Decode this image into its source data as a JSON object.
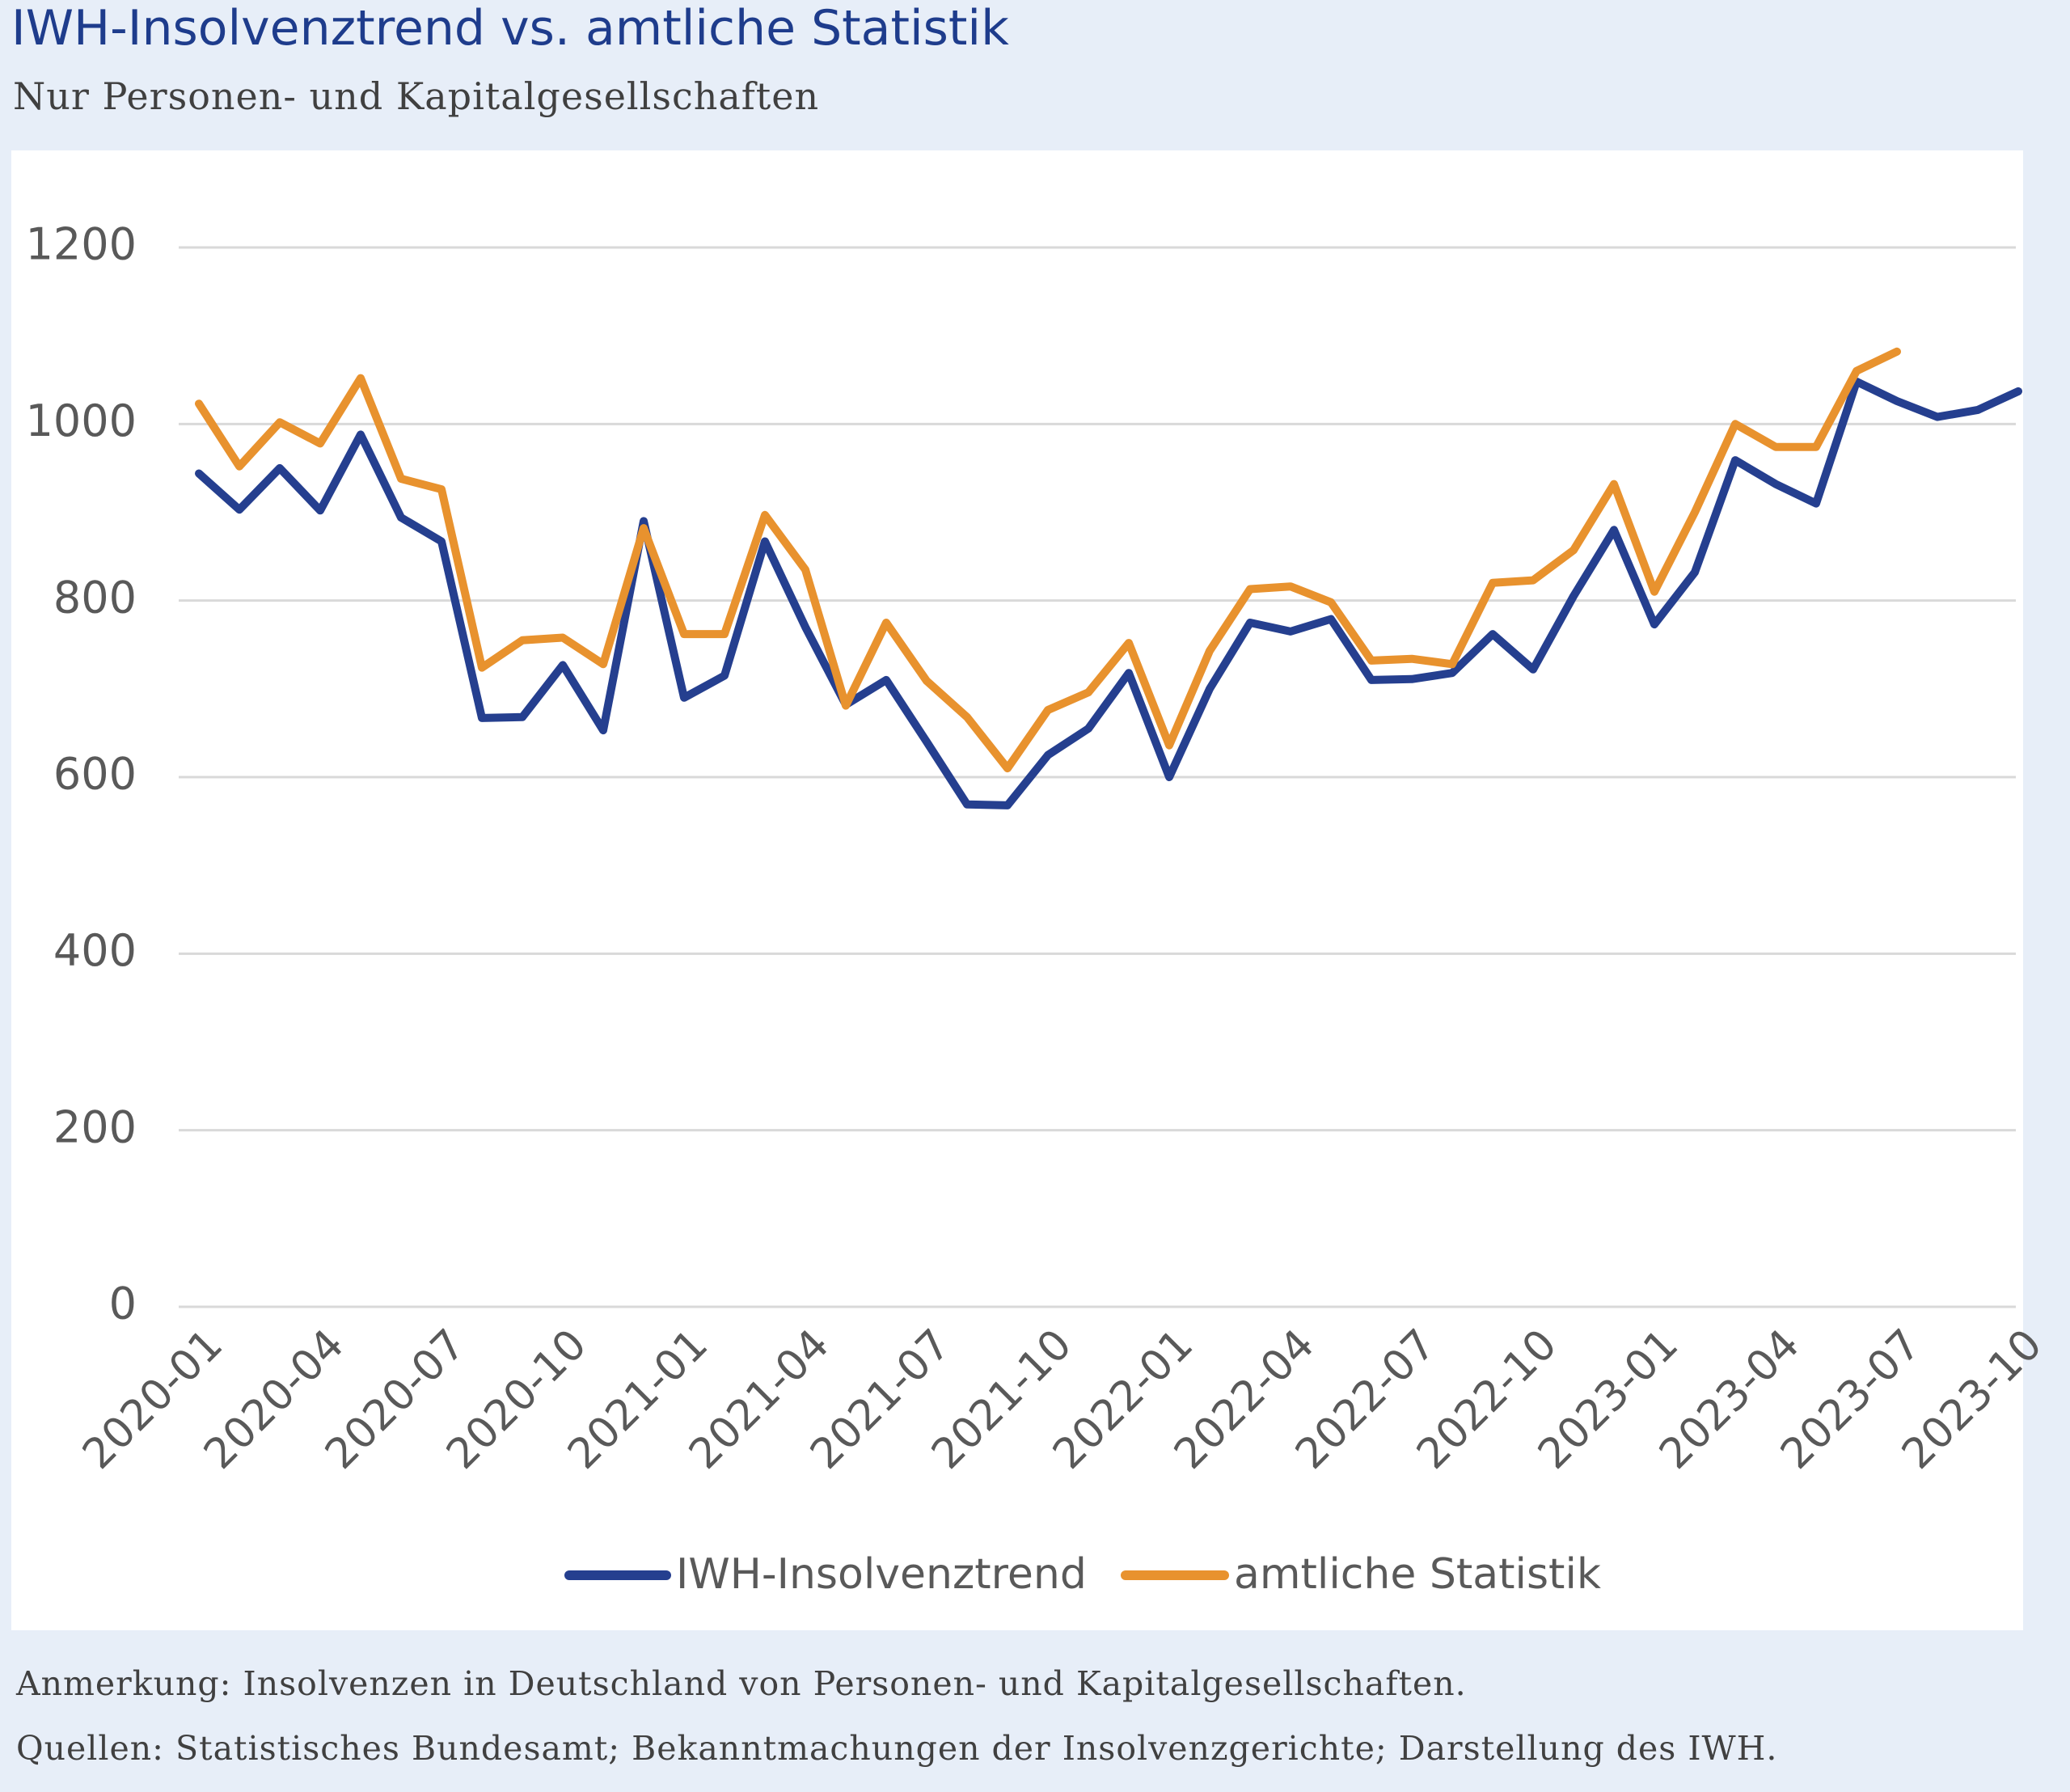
{
  "header": {
    "title": "IWH-Insolvenztrend vs. amtliche Statistik",
    "subtitle": "Nur Personen- und Kapitalgesellschaften"
  },
  "footer": {
    "note": "Anmerkung: Insolvenzen in Deutschland von Personen- und Kapitalgesellschaften.",
    "sources": "Quellen: Statistisches Bundesamt; Bekanntmachungen der Insolvenzgerichte; Darstellung des IWH."
  },
  "chart_data": {
    "type": "line",
    "title": "IWH-Insolvenztrend vs. amtliche Statistik",
    "subtitle": "Nur Personen- und Kapitalgesellschaften",
    "xlabel": "",
    "ylabel": "",
    "ylim": [
      0,
      1200
    ],
    "yticks": [
      0,
      200,
      400,
      600,
      800,
      1000,
      1200
    ],
    "grid": true,
    "legend_position": "bottom",
    "x": [
      "2020-01",
      "2020-02",
      "2020-03",
      "2020-04",
      "2020-05",
      "2020-06",
      "2020-07",
      "2020-08",
      "2020-09",
      "2020-10",
      "2020-11",
      "2020-12",
      "2021-01",
      "2021-02",
      "2021-03",
      "2021-04",
      "2021-05",
      "2021-06",
      "2021-07",
      "2021-08",
      "2021-09",
      "2021-10",
      "2021-11",
      "2021-12",
      "2022-01",
      "2022-02",
      "2022-03",
      "2022-04",
      "2022-05",
      "2022-06",
      "2022-07",
      "2022-08",
      "2022-09",
      "2022-10",
      "2022-11",
      "2022-12",
      "2023-01",
      "2023-02",
      "2023-03",
      "2023-04",
      "2023-05",
      "2023-06",
      "2023-07",
      "2023-08",
      "2023-09",
      "2023-10"
    ],
    "xtick_labels": [
      "2020-01",
      "2020-04",
      "2020-07",
      "2020-10",
      "2021-01",
      "2021-04",
      "2021-07",
      "2021-10",
      "2022-01",
      "2022-04",
      "2022-07",
      "2022-10",
      "2023-01",
      "2023-04",
      "2023-07",
      "2023-10"
    ],
    "series": [
      {
        "name": "IWH-Insolvenztrend",
        "color": "#253f8f",
        "values": [
          944,
          903,
          950,
          902,
          988,
          894,
          867,
          667,
          668,
          727,
          653,
          890,
          690,
          715,
          867,
          770,
          682,
          710,
          640,
          569,
          568,
          625,
          655,
          718,
          600,
          700,
          775,
          765,
          779,
          710,
          711,
          718,
          762,
          722,
          805,
          880,
          773,
          832,
          959,
          932,
          910,
          1048,
          1026,
          1008,
          1016,
          1037
        ]
      },
      {
        "name": "amtliche Statistik",
        "color": "#e8922e",
        "values": [
          1023,
          952,
          1002,
          978,
          1052,
          938,
          926,
          724,
          755,
          758,
          728,
          882,
          762,
          762,
          897,
          835,
          681,
          775,
          709,
          668,
          610,
          676,
          696,
          752,
          636,
          743,
          813,
          816,
          798,
          732,
          734,
          728,
          820,
          823,
          857,
          932,
          810,
          900,
          1000,
          974,
          974,
          1060,
          1082,
          null,
          null,
          null
        ]
      }
    ]
  }
}
